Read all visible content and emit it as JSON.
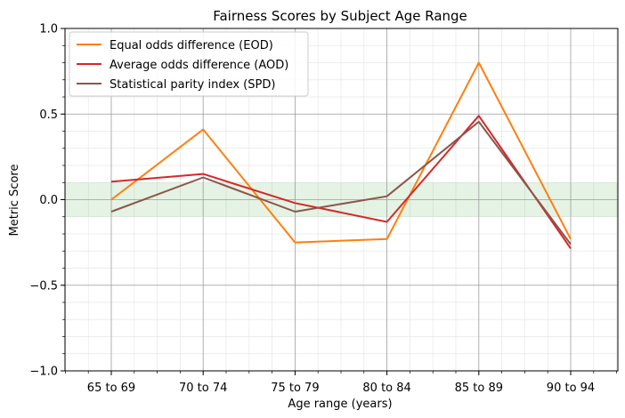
{
  "chart_data": {
    "type": "line",
    "title": "Fairness Scores by Subject Age Range",
    "xlabel": "Age range (years)",
    "ylabel": "Metric Score",
    "categories": [
      "65 to 69",
      "70 to 74",
      "75 to 79",
      "80 to 84",
      "85 to 89",
      "90 to 94"
    ],
    "ylim": [
      -1.0,
      1.0
    ],
    "yticks": [
      {
        "value": -1.0,
        "label": "−1.0"
      },
      {
        "value": -0.5,
        "label": "−0.5"
      },
      {
        "value": 0.0,
        "label": "0.0"
      },
      {
        "value": 0.5,
        "label": "0.5"
      },
      {
        "value": 1.0,
        "label": "1.0"
      }
    ],
    "fair_band": {
      "low": -0.1,
      "high": 0.1,
      "color": "#2ca02c"
    },
    "grid": true,
    "minor_grid": true,
    "legend_position": "top-left",
    "series": [
      {
        "name": "Equal odds difference (EOD)",
        "color": "#ff7f0e",
        "values": [
          0.0,
          0.41,
          -0.25,
          -0.23,
          0.8,
          -0.23
        ]
      },
      {
        "name": "Average odds difference (AOD)",
        "color": "#d62728",
        "values": [
          0.105,
          0.15,
          -0.02,
          -0.13,
          0.49,
          -0.285
        ]
      },
      {
        "name": "Statistical parity index (SPD)",
        "color": "#8c564b",
        "values": [
          -0.07,
          0.13,
          -0.07,
          0.02,
          0.455,
          -0.26
        ]
      }
    ]
  }
}
